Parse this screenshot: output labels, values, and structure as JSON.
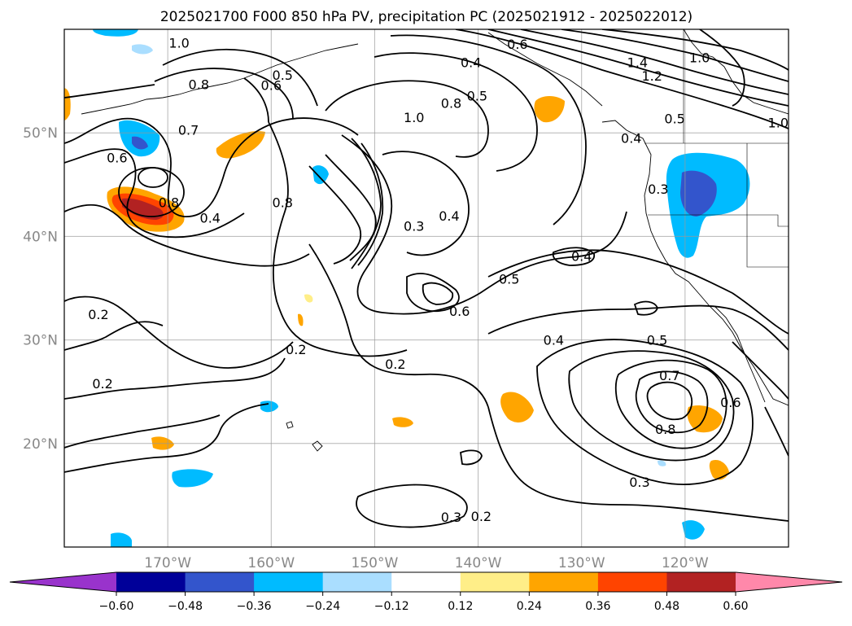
{
  "chart_data": {
    "type": "map",
    "title": "2025021700 F000 850 hPa PV, precipitation PC (2025021912 - 2025022012)",
    "map": {
      "lon_range": [
        -180,
        -110
      ],
      "lat_range": [
        10,
        60
      ],
      "x_ticks": [
        -170,
        -160,
        -150,
        -140,
        -130,
        -120
      ],
      "x_tick_labels": [
        "170°W",
        "160°W",
        "150°W",
        "140°W",
        "130°W",
        "120°W"
      ],
      "y_ticks": [
        20,
        30,
        40,
        50
      ],
      "y_tick_labels": [
        "20°N",
        "30°N",
        "40°N",
        "50°N"
      ],
      "grid": true
    },
    "colorbar": {
      "orientation": "horizontal",
      "extend": "both",
      "levels": [
        -0.6,
        -0.48,
        -0.36,
        -0.24,
        -0.12,
        0.12,
        0.24,
        0.36,
        0.48,
        0.6
      ],
      "tick_labels": [
        "−0.60",
        "−0.48",
        "−0.36",
        "−0.24",
        "−0.12",
        "0.12",
        "0.24",
        "0.36",
        "0.48",
        "0.60"
      ],
      "colors": [
        "#9933cc",
        "#000099",
        "#3355cc",
        "#00bbff",
        "#aadeff",
        "#ffffff",
        "#ffee88",
        "#ffa500",
        "#ff4400",
        "#b22222",
        "#ff88aa"
      ]
    },
    "contour_labels": [
      {
        "text": "1.0",
        "lon": -168.9,
        "lat": 58.7
      },
      {
        "text": "0.8",
        "lon": -167.0,
        "lat": 54.7
      },
      {
        "text": "0.5",
        "lon": -158.9,
        "lat": 55.6
      },
      {
        "text": "0.6",
        "lon": -160.0,
        "lat": 54.6
      },
      {
        "text": "0.7",
        "lon": -168.0,
        "lat": 50.3
      },
      {
        "text": "0.6",
        "lon": -174.9,
        "lat": 47.6
      },
      {
        "text": "0.8",
        "lon": -169.9,
        "lat": 43.3
      },
      {
        "text": "0.4",
        "lon": -165.9,
        "lat": 41.8
      },
      {
        "text": "0.8",
        "lon": -158.9,
        "lat": 43.3
      },
      {
        "text": "0.4",
        "lon": -140.7,
        "lat": 56.8
      },
      {
        "text": "0.8",
        "lon": -142.6,
        "lat": 52.9
      },
      {
        "text": "0.5",
        "lon": -140.1,
        "lat": 53.6
      },
      {
        "text": "1.0",
        "lon": -146.2,
        "lat": 51.5
      },
      {
        "text": "0.6",
        "lon": -136.2,
        "lat": 58.6
      },
      {
        "text": "1.4",
        "lon": -124.6,
        "lat": 56.8
      },
      {
        "text": "1.2",
        "lon": -123.2,
        "lat": 55.5
      },
      {
        "text": "1.0",
        "lon": -118.6,
        "lat": 57.3
      },
      {
        "text": "0.5",
        "lon": -121.0,
        "lat": 51.4
      },
      {
        "text": "1.0",
        "lon": -111.0,
        "lat": 51.0
      },
      {
        "text": "0.4",
        "lon": -125.2,
        "lat": 49.5
      },
      {
        "text": "0.3",
        "lon": -146.2,
        "lat": 41.0
      },
      {
        "text": "0.4",
        "lon": -142.8,
        "lat": 42.0
      },
      {
        "text": "0.3",
        "lon": -122.6,
        "lat": 44.6
      },
      {
        "text": "0.4",
        "lon": -130.0,
        "lat": 38.1
      },
      {
        "text": "0.5",
        "lon": -137.0,
        "lat": 35.9
      },
      {
        "text": "0.6",
        "lon": -141.8,
        "lat": 32.8
      },
      {
        "text": "0.2",
        "lon": -176.7,
        "lat": 32.5
      },
      {
        "text": "0.2",
        "lon": -157.6,
        "lat": 29.1
      },
      {
        "text": "0.2",
        "lon": -148.0,
        "lat": 27.7
      },
      {
        "text": "0.2",
        "lon": -176.3,
        "lat": 25.8
      },
      {
        "text": "0.4",
        "lon": -132.7,
        "lat": 30.0
      },
      {
        "text": "0.5",
        "lon": -122.7,
        "lat": 30.0
      },
      {
        "text": "0.7",
        "lon": -121.5,
        "lat": 26.6
      },
      {
        "text": "0.6",
        "lon": -115.6,
        "lat": 24.0
      },
      {
        "text": "0.8",
        "lon": -121.9,
        "lat": 21.4
      },
      {
        "text": "0.3",
        "lon": -124.4,
        "lat": 16.3
      },
      {
        "text": "0.3",
        "lon": -142.6,
        "lat": 12.9
      },
      {
        "text": "0.2",
        "lon": -139.7,
        "lat": 13.0
      }
    ]
  }
}
